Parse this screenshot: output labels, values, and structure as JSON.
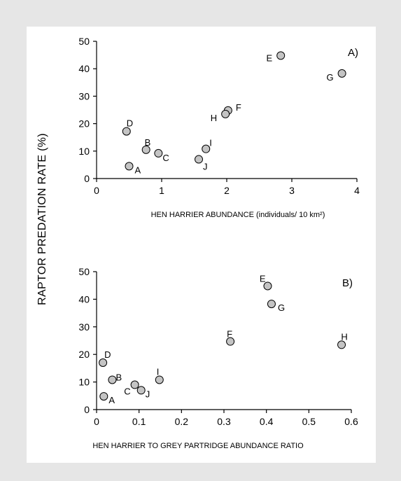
{
  "y_axis_label": "RAPTOR PREDATION RATE (%)",
  "chart_data": [
    {
      "type": "scatter",
      "panel_label": "A)",
      "xlabel": "HEN HARRIER ABUNDANCE (individuals/ 10 km²)",
      "ylabel": "RAPTOR PREDATION RATE (%)",
      "xlim": [
        0,
        4
      ],
      "ylim": [
        0,
        50
      ],
      "x_ticks": [
        "0",
        "1",
        "2",
        "3",
        "4"
      ],
      "y_ticks": [
        "0",
        "10",
        "20",
        "30",
        "40",
        "50"
      ],
      "points": [
        {
          "label": "A",
          "x": 0.5,
          "y": 4.5
        },
        {
          "label": "B",
          "x": 0.76,
          "y": 10.5
        },
        {
          "label": "C",
          "x": 0.95,
          "y": 9.2
        },
        {
          "label": "D",
          "x": 0.46,
          "y": 17.2
        },
        {
          "label": "E",
          "x": 2.83,
          "y": 44.8
        },
        {
          "label": "F",
          "x": 2.02,
          "y": 24.8
        },
        {
          "label": "G",
          "x": 3.77,
          "y": 38.3
        },
        {
          "label": "H",
          "x": 1.98,
          "y": 23.5
        },
        {
          "label": "I",
          "x": 1.68,
          "y": 10.8
        },
        {
          "label": "J",
          "x": 1.57,
          "y": 7.0
        }
      ]
    },
    {
      "type": "scatter",
      "panel_label": "B)",
      "xlabel": "HEN HARRIER TO GREY PARTRIDGE ABUNDANCE RATIO",
      "ylabel": "RAPTOR PREDATION RATE (%)",
      "xlim": [
        0,
        0.6
      ],
      "ylim": [
        0,
        50
      ],
      "x_ticks": [
        "0",
        "0.1",
        "0.2",
        "0.3",
        "0.4",
        "0.5",
        "0.6"
      ],
      "y_ticks": [
        "0",
        "10",
        "20",
        "30",
        "40",
        "50"
      ],
      "points": [
        {
          "label": "A",
          "x": 0.017,
          "y": 4.8
        },
        {
          "label": "B",
          "x": 0.037,
          "y": 10.8
        },
        {
          "label": "C",
          "x": 0.09,
          "y": 9.0
        },
        {
          "label": "D",
          "x": 0.015,
          "y": 17.0
        },
        {
          "label": "E",
          "x": 0.403,
          "y": 44.8
        },
        {
          "label": "F",
          "x": 0.315,
          "y": 24.7
        },
        {
          "label": "G",
          "x": 0.412,
          "y": 38.3
        },
        {
          "label": "H",
          "x": 0.577,
          "y": 23.5
        },
        {
          "label": "I",
          "x": 0.148,
          "y": 10.8
        },
        {
          "label": "J",
          "x": 0.105,
          "y": 7.0
        }
      ]
    }
  ]
}
